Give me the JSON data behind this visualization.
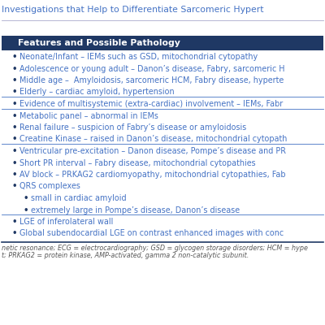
{
  "title_line1": "Investigations that Help to Differentiate Sarcomeric Hypert",
  "title_color": "#4472C4",
  "title_fontsize": 7.8,
  "header_text": "Features and Possible Pathology",
  "header_bg": "#1F3864",
  "header_fg": "#FFFFFF",
  "header_fontsize": 7.8,
  "text_color": "#4472C4",
  "bullet_color": "#1F3864",
  "section_line_color": "#4472C4",
  "footer_color": "#595959",
  "footer_fontsize": 5.8,
  "footer_line1": "netic resonance; ECG = electrocardiography; GSD = glycogen storage disorders; HCM = hype",
  "footer_line2": "t; PRKAG2 = protein kinase, AMP-activated, gamma 2 non-catalytic subunit.",
  "sections": [
    {
      "items": [
        "Neonate/Infant – IEMs such as GSD, mitochondrial cytopathy",
        "Adolescence or young adult – Danon’s disease, Fabry, sarcomeric H",
        "Middle age –  Amyloidosis, sarcomeric HCM, Fabry disease, hyperte",
        "Elderly – cardiac amyloid, hypertension"
      ],
      "indent": [
        0,
        0,
        0,
        0
      ]
    },
    {
      "items": [
        "Evidence of multisystemic (extra-cardiac) involvement – IEMs, Fabr"
      ],
      "indent": [
        0
      ]
    },
    {
      "items": [
        "Metabolic panel – abnormal in IEMs",
        "Renal failure – suspicion of Fabry’s disease or amyloidosis",
        "Creatine Kinase – raised in Danon’s disease, mitochondrial cytopath"
      ],
      "indent": [
        0,
        0,
        0
      ]
    },
    {
      "items": [
        "Ventricular pre-excitation – Danon disease, Pompe’s disease and PR",
        "Short PR interval – Fabry disease, mitochondrial cytopathies",
        "AV block – PRKAG2 cardiomyopathy, mitochondrial cytopathies, Fab",
        "QRS complexes",
        "small in cardiac amyloid",
        "extremely large in Pompe’s disease, Danon’s disease"
      ],
      "indent": [
        0,
        0,
        0,
        0,
        1,
        1
      ]
    },
    {
      "items": [
        "LGE of inferolateral wall",
        "Global subendocardial LGE on contrast enhanced images with conc"
      ],
      "indent": [
        0,
        0
      ]
    }
  ]
}
